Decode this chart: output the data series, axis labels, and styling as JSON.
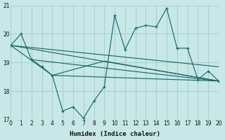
{
  "xlabel": "Humidex (Indice chaleur)",
  "background_color": "#c8e8e8",
  "grid_color": "#a8d0d0",
  "line_color": "#1a6b6b",
  "xlim": [
    0,
    20
  ],
  "ylim": [
    17,
    21
  ],
  "yticks": [
    17,
    18,
    19,
    20,
    21
  ],
  "xticks": [
    0,
    1,
    2,
    3,
    4,
    5,
    6,
    7,
    8,
    9,
    10,
    11,
    12,
    13,
    14,
    15,
    16,
    17,
    18,
    19,
    20
  ],
  "main_x": [
    0,
    1,
    2,
    3,
    4,
    5,
    6,
    7,
    8,
    9,
    10,
    11,
    12,
    13,
    14,
    15,
    16,
    17,
    18,
    19,
    20
  ],
  "main_y": [
    19.6,
    20.0,
    19.1,
    18.85,
    18.55,
    17.3,
    17.45,
    17.05,
    17.65,
    18.15,
    20.65,
    19.45,
    20.2,
    20.3,
    20.25,
    20.9,
    19.5,
    19.5,
    18.4,
    18.7,
    18.35
  ],
  "straight_lines": [
    {
      "x": [
        0,
        20
      ],
      "y": [
        19.6,
        18.85
      ]
    },
    {
      "x": [
        0,
        20
      ],
      "y": [
        19.6,
        18.35
      ]
    },
    {
      "x": [
        2,
        20
      ],
      "y": [
        19.1,
        18.35
      ]
    },
    {
      "x": [
        4,
        20
      ],
      "y": [
        18.55,
        18.35
      ]
    },
    {
      "x": [
        0,
        4,
        9,
        20
      ],
      "y": [
        19.6,
        18.55,
        19.05,
        18.35
      ]
    }
  ]
}
